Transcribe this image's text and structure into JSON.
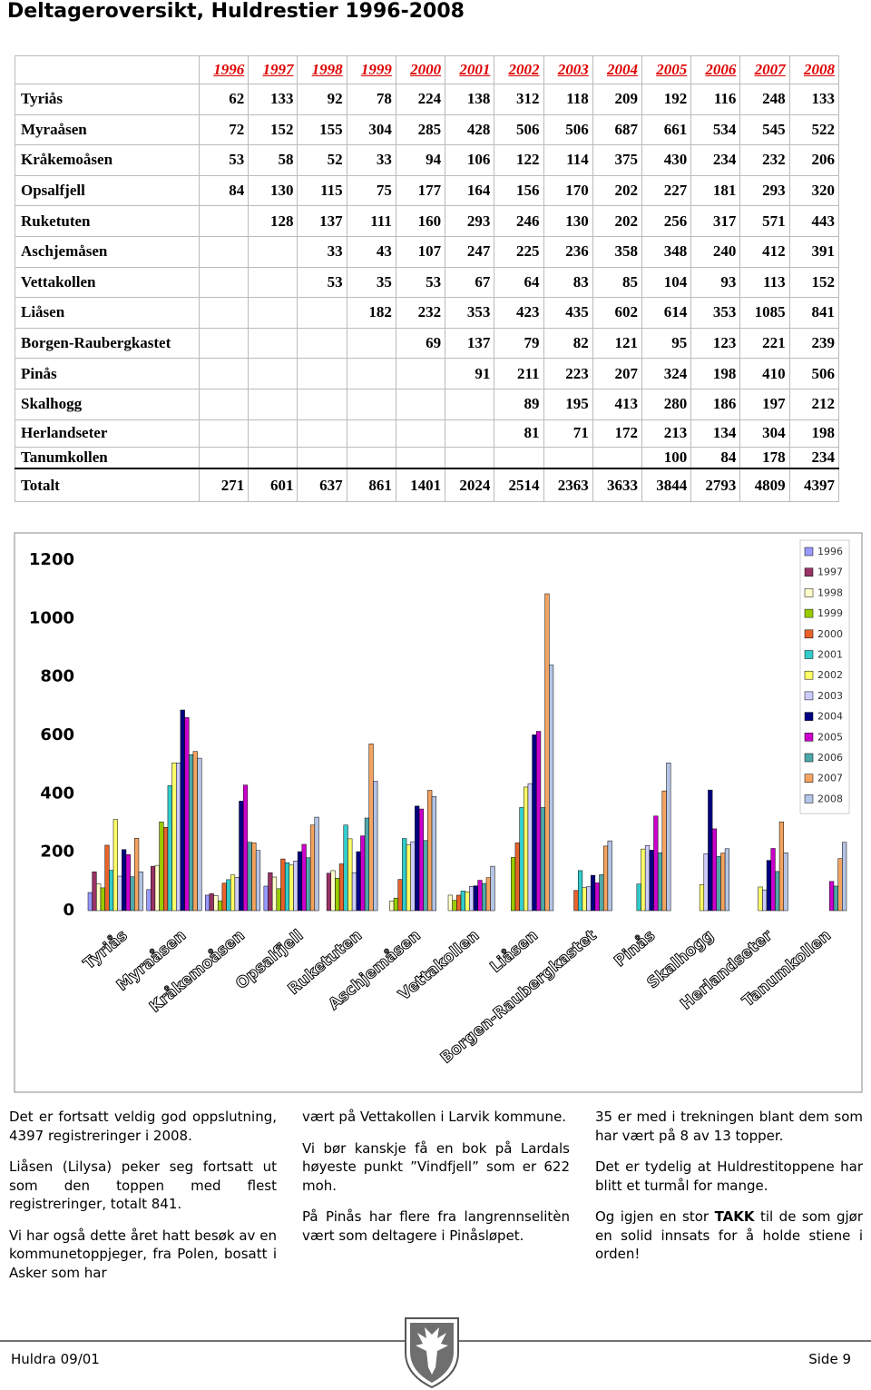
{
  "title": "Deltageroversikt, Huldrestier 1996-2008",
  "table": {
    "years": [
      "1996",
      "1997",
      "1998",
      "1999",
      "2000",
      "2001",
      "2002",
      "2003",
      "2004",
      "2005",
      "2006",
      "2007",
      "2008"
    ],
    "rows": [
      {
        "name": "Tyriås",
        "values": [
          62,
          133,
          92,
          78,
          224,
          138,
          312,
          118,
          209,
          192,
          116,
          248,
          133
        ]
      },
      {
        "name": "Myraåsen",
        "values": [
          72,
          152,
          155,
          304,
          285,
          428,
          506,
          506,
          687,
          661,
          534,
          545,
          522
        ]
      },
      {
        "name": "Kråkemoåsen",
        "values": [
          53,
          58,
          52,
          33,
          94,
          106,
          122,
          114,
          375,
          430,
          234,
          232,
          206
        ]
      },
      {
        "name": "Opsalfjell",
        "values": [
          84,
          130,
          115,
          75,
          177,
          164,
          156,
          170,
          202,
          227,
          181,
          293,
          320
        ]
      },
      {
        "name": "Ruketuten",
        "values": [
          null,
          128,
          137,
          111,
          160,
          293,
          246,
          130,
          202,
          256,
          317,
          571,
          443
        ]
      },
      {
        "name": "Aschjemåsen",
        "values": [
          null,
          null,
          33,
          43,
          107,
          247,
          225,
          236,
          358,
          348,
          240,
          412,
          391
        ]
      },
      {
        "name": "Vettakollen",
        "values": [
          null,
          null,
          53,
          35,
          53,
          67,
          64,
          83,
          85,
          104,
          93,
          113,
          152
        ]
      },
      {
        "name": "Liåsen",
        "values": [
          null,
          null,
          null,
          182,
          232,
          353,
          423,
          435,
          602,
          614,
          353,
          1085,
          841
        ]
      },
      {
        "name": "Borgen-Raubergkastet",
        "values": [
          null,
          null,
          null,
          null,
          69,
          137,
          79,
          82,
          121,
          95,
          123,
          221,
          239
        ]
      },
      {
        "name": "Pinås",
        "values": [
          null,
          null,
          null,
          null,
          null,
          91,
          211,
          223,
          207,
          324,
          198,
          410,
          506
        ]
      },
      {
        "name": "Skalhogg",
        "values": [
          null,
          null,
          null,
          null,
          null,
          null,
          89,
          195,
          413,
          280,
          186,
          197,
          212
        ]
      },
      {
        "name": "Herlandseter",
        "values": [
          null,
          null,
          null,
          null,
          null,
          null,
          81,
          71,
          172,
          213,
          134,
          304,
          198
        ]
      },
      {
        "name": "Tanumkollen",
        "values": [
          null,
          null,
          null,
          null,
          null,
          null,
          null,
          null,
          null,
          100,
          84,
          178,
          234
        ]
      }
    ],
    "total": {
      "name": "Totalt",
      "values": [
        271,
        601,
        637,
        861,
        1401,
        2024,
        2514,
        2363,
        3633,
        3844,
        2793,
        4809,
        4397
      ]
    }
  },
  "chart_data": {
    "type": "bar",
    "categories": [
      "Tyriås",
      "Myraåsen",
      "Kråkemoåsen",
      "Opsalfjell",
      "Ruketuten",
      "Aschjemåsen",
      "Vettakollen",
      "Liåsen",
      "Borgen-Raubergkastet",
      "Pinås",
      "Skalhogg",
      "Herlandseter",
      "Tanumkollen"
    ],
    "ylim": [
      0,
      1200
    ],
    "yticks": [
      0,
      200,
      400,
      600,
      800,
      {
        "value": 1000,
        "label": "1000"
      },
      {
        "value": 1200,
        "label": "1200"
      }
    ],
    "grid": false,
    "legend": "top-right",
    "series": [
      {
        "name": "1996",
        "color": "#9999ff",
        "values": [
          62,
          72,
          53,
          84,
          null,
          null,
          null,
          null,
          null,
          null,
          null,
          null,
          null
        ]
      },
      {
        "name": "1997",
        "color": "#993366",
        "values": [
          133,
          152,
          58,
          130,
          128,
          null,
          null,
          null,
          null,
          null,
          null,
          null,
          null
        ]
      },
      {
        "name": "1998",
        "color": "#ffffcc",
        "values": [
          92,
          155,
          52,
          115,
          137,
          33,
          53,
          null,
          null,
          null,
          null,
          null,
          null
        ]
      },
      {
        "name": "1999",
        "color": "#99cc00",
        "values": [
          78,
          304,
          33,
          75,
          111,
          43,
          35,
          182,
          null,
          null,
          null,
          null,
          null
        ]
      },
      {
        "name": "2000",
        "color": "#e8632b",
        "values": [
          224,
          285,
          94,
          177,
          160,
          107,
          53,
          232,
          69,
          null,
          null,
          null,
          null
        ]
      },
      {
        "name": "2001",
        "color": "#33cccc",
        "values": [
          138,
          428,
          106,
          164,
          293,
          247,
          67,
          353,
          137,
          91,
          null,
          null,
          null
        ]
      },
      {
        "name": "2002",
        "color": "#ffff66",
        "values": [
          312,
          506,
          122,
          156,
          246,
          225,
          64,
          423,
          79,
          211,
          89,
          81,
          null
        ]
      },
      {
        "name": "2003",
        "color": "#ccccff",
        "values": [
          118,
          506,
          114,
          170,
          130,
          236,
          83,
          435,
          82,
          223,
          195,
          71,
          null
        ]
      },
      {
        "name": "2004",
        "color": "#000080",
        "values": [
          209,
          687,
          375,
          202,
          202,
          358,
          85,
          602,
          121,
          207,
          413,
          172,
          null
        ]
      },
      {
        "name": "2005",
        "color": "#cc00cc",
        "values": [
          192,
          661,
          430,
          227,
          256,
          348,
          104,
          614,
          95,
          324,
          280,
          213,
          100
        ]
      },
      {
        "name": "2006",
        "color": "#4fa8a8",
        "values": [
          116,
          534,
          234,
          181,
          317,
          240,
          93,
          353,
          123,
          198,
          186,
          134,
          84
        ]
      },
      {
        "name": "2007",
        "color": "#f4a460",
        "values": [
          248,
          545,
          232,
          293,
          571,
          412,
          113,
          1085,
          221,
          410,
          197,
          304,
          178
        ]
      },
      {
        "name": "2008",
        "color": "#b4c4e4",
        "values": [
          133,
          522,
          206,
          320,
          443,
          391,
          152,
          841,
          239,
          506,
          212,
          198,
          234
        ]
      }
    ]
  },
  "columns": [
    [
      "Det er fortsatt veldig god oppslutning, 4397 registreringer i 2008.",
      "Liåsen (Lilysa) peker seg fortsatt ut som den toppen med flest registreringer, totalt 841.",
      "Vi har også dette året hatt besøk av en kommunetoppjeger, fra Polen, bosatt i Asker som har"
    ],
    [
      "vært på Vettakollen i Larvik kommune.",
      "Vi bør kanskje få en bok på Lardals høyeste punkt ”Vindfjell” som er 622 moh.",
      "På Pinås har flere fra langrennselitèn vært som deltagere i Pinåsløpet."
    ],
    [
      "35 er med i trekningen blant dem som har vært på 8 av 13 topper.",
      "Det er tydelig at Huldrestitoppene har blitt et turmål for mange."
    ]
  ],
  "closing": {
    "before": "Og igjen en stor ",
    "bold": "TAKK",
    "after": " til de som gjør en solid innsats for å holde stiene i orden!"
  },
  "footer": {
    "left": "Huldra 09/01",
    "right": "Side 9"
  }
}
